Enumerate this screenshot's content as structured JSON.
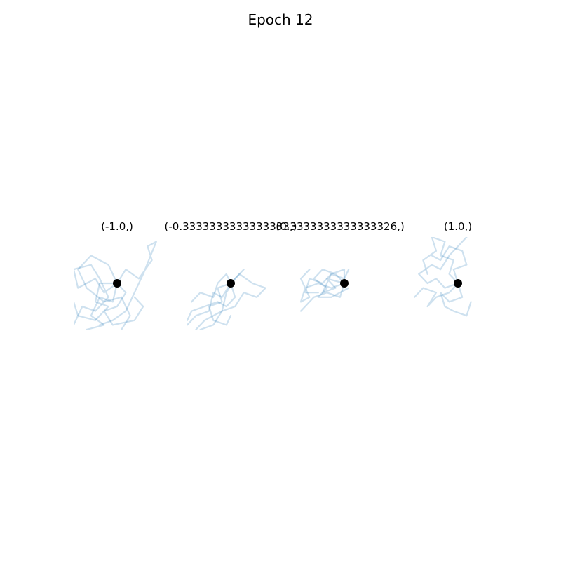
{
  "figure": {
    "title": "Epoch 12"
  },
  "chart_data": {
    "type": "line",
    "title": "Epoch 12",
    "path_color": "#1f77b4",
    "path_opacity": 0.22,
    "marker_color": "#000000",
    "grid": false,
    "axes_visible": false,
    "xlim": [
      -1,
      1
    ],
    "ylim": [
      -1,
      1
    ],
    "panels": [
      {
        "title": "(-1.0,)",
        "start": [
          0,
          0
        ],
        "paths": [
          [
            [
              0,
              0
            ],
            [
              -0.3,
              -0.2
            ],
            [
              -0.5,
              0.1
            ],
            [
              -0.9,
              -0.1
            ],
            [
              -1.0,
              0.3
            ],
            [
              -0.6,
              0.4
            ],
            [
              -0.4,
              0.1
            ],
            [
              -0.2,
              -0.3
            ],
            [
              -0.5,
              -0.6
            ],
            [
              -0.8,
              -0.5
            ],
            [
              -1.0,
              -0.9
            ]
          ],
          [
            [
              0,
              0
            ],
            [
              0.2,
              0.3
            ],
            [
              0.5,
              0.1
            ],
            [
              0.8,
              0.5
            ],
            [
              0.7,
              0.8
            ],
            [
              0.9,
              0.9
            ],
            [
              0.6,
              0.2
            ],
            [
              0.4,
              -0.2
            ],
            [
              0.2,
              -0.6
            ],
            [
              -0.1,
              -0.8
            ],
            [
              -0.4,
              -0.9
            ]
          ],
          [
            [
              0,
              0
            ],
            [
              -0.2,
              0.4
            ],
            [
              -0.6,
              0.6
            ],
            [
              -0.9,
              0.3
            ],
            [
              -0.7,
              -0.1
            ],
            [
              -0.3,
              -0.4
            ],
            [
              0.1,
              -0.3
            ],
            [
              0.3,
              -0.7
            ],
            [
              0.1,
              -1.0
            ]
          ],
          [
            [
              0,
              0
            ],
            [
              -0.1,
              -0.4
            ],
            [
              -0.4,
              -0.3
            ],
            [
              -0.6,
              -0.7
            ],
            [
              -0.3,
              -0.9
            ],
            [
              -0.7,
              -1.0
            ]
          ],
          [
            [
              0,
              0
            ],
            [
              0.2,
              -0.2
            ],
            [
              0.0,
              -0.5
            ],
            [
              -0.3,
              -0.6
            ],
            [
              -0.1,
              -0.9
            ],
            [
              0.4,
              -0.8
            ],
            [
              0.6,
              -0.5
            ],
            [
              0.4,
              -0.3
            ]
          ],
          [
            [
              0,
              0
            ],
            [
              -0.4,
              0.0
            ],
            [
              -0.5,
              -0.4
            ],
            [
              -0.2,
              -0.5
            ],
            [
              -0.5,
              -0.8
            ],
            [
              -0.9,
              -0.7
            ],
            [
              -1.0,
              -0.4
            ]
          ]
        ]
      },
      {
        "title": "(-0.3333333333333333,)",
        "start": [
          0,
          0
        ],
        "paths": [
          [
            [
              0,
              0
            ],
            [
              -0.2,
              -0.3
            ],
            [
              -0.4,
              -0.2
            ],
            [
              -0.5,
              -0.6
            ],
            [
              -0.8,
              -0.7
            ],
            [
              -1.0,
              -0.9
            ]
          ],
          [
            [
              0,
              0
            ],
            [
              0.2,
              0.2
            ],
            [
              0.5,
              0.0
            ],
            [
              0.8,
              -0.1
            ],
            [
              0.6,
              -0.3
            ],
            [
              0.3,
              -0.2
            ],
            [
              0.1,
              -0.5
            ],
            [
              -0.2,
              -0.6
            ],
            [
              -0.4,
              -0.9
            ],
            [
              -0.7,
              -1.0
            ]
          ],
          [
            [
              0,
              0
            ],
            [
              0.1,
              -0.3
            ],
            [
              -0.1,
              -0.5
            ],
            [
              -0.3,
              -0.4
            ],
            [
              -0.6,
              -0.5
            ],
            [
              -0.9,
              -0.6
            ],
            [
              -1.0,
              -0.8
            ]
          ],
          [
            [
              0,
              0
            ],
            [
              -0.3,
              -0.1
            ],
            [
              -0.2,
              -0.4
            ],
            [
              -0.5,
              -0.5
            ],
            [
              -0.4,
              -0.8
            ],
            [
              -0.1,
              -0.9
            ],
            [
              0.0,
              -0.7
            ]
          ],
          [
            [
              0,
              0
            ],
            [
              0.3,
              0.3
            ],
            [
              0.1,
              0.1
            ],
            [
              -0.1,
              -0.2
            ],
            [
              -0.2,
              -0.6
            ],
            [
              -0.6,
              -0.8
            ],
            [
              -0.8,
              -1.0
            ]
          ],
          [
            [
              0,
              0
            ],
            [
              -0.1,
              0.2
            ],
            [
              -0.3,
              0.0
            ],
            [
              -0.4,
              -0.3
            ],
            [
              -0.7,
              -0.2
            ],
            [
              -0.9,
              -0.4
            ]
          ]
        ]
      },
      {
        "title": "(0.3333333333333326,)",
        "start": [
          0,
          0
        ],
        "paths": [
          [
            [
              0,
              0
            ],
            [
              -0.3,
              -0.1
            ],
            [
              -0.6,
              0.0
            ],
            [
              -0.9,
              -0.1
            ],
            [
              -1.0,
              -0.4
            ],
            [
              -0.8,
              -0.3
            ],
            [
              -1.0,
              0.1
            ],
            [
              -0.8,
              0.3
            ]
          ],
          [
            [
              0,
              0
            ],
            [
              -0.2,
              0.2
            ],
            [
              -0.5,
              0.3
            ],
            [
              -0.7,
              0.1
            ],
            [
              -0.4,
              -0.1
            ],
            [
              -0.6,
              -0.3
            ],
            [
              -0.3,
              -0.3
            ],
            [
              -0.1,
              -0.2
            ],
            [
              0.1,
              -0.1
            ]
          ],
          [
            [
              0,
              0
            ],
            [
              0.0,
              0.3
            ],
            [
              -0.3,
              0.2
            ],
            [
              -0.5,
              0.0
            ],
            [
              -0.8,
              0.1
            ],
            [
              -0.9,
              -0.2
            ],
            [
              -0.6,
              -0.2
            ]
          ],
          [
            [
              0,
              0
            ],
            [
              -0.1,
              -0.3
            ],
            [
              -0.4,
              -0.2
            ],
            [
              -0.7,
              -0.3
            ],
            [
              -0.9,
              -0.5
            ],
            [
              -1.0,
              -0.6
            ]
          ],
          [
            [
              0,
              0
            ],
            [
              -0.4,
              0.1
            ],
            [
              -0.2,
              -0.1
            ],
            [
              -0.5,
              -0.2
            ],
            [
              -0.3,
              0.2
            ],
            [
              0.0,
              0.1
            ],
            [
              0.1,
              0.3
            ]
          ]
        ]
      },
      {
        "title": "(1.0,)",
        "start": [
          0,
          0
        ],
        "paths": [
          [
            [
              0,
              0
            ],
            [
              -0.2,
              0.2
            ],
            [
              -0.1,
              0.5
            ],
            [
              -0.4,
              0.6
            ],
            [
              -0.3,
              0.9
            ],
            [
              -0.6,
              1.0
            ],
            [
              -0.5,
              0.7
            ],
            [
              -0.8,
              0.5
            ],
            [
              -0.7,
              0.2
            ]
          ],
          [
            [
              0,
              0
            ],
            [
              -0.3,
              -0.1
            ],
            [
              -0.5,
              0.1
            ],
            [
              -0.7,
              0.0
            ],
            [
              -0.9,
              0.2
            ],
            [
              -0.6,
              0.4
            ],
            [
              -0.4,
              0.3
            ],
            [
              -0.2,
              0.6
            ],
            [
              0.0,
              0.8
            ],
            [
              0.2,
              1.0
            ]
          ],
          [
            [
              0,
              0
            ],
            [
              0.1,
              -0.3
            ],
            [
              -0.2,
              -0.4
            ],
            [
              -0.4,
              -0.2
            ],
            [
              -0.3,
              -0.5
            ],
            [
              -0.1,
              -0.6
            ],
            [
              0.2,
              -0.7
            ],
            [
              0.3,
              -0.4
            ]
          ],
          [
            [
              0,
              0
            ],
            [
              -0.1,
              0.3
            ],
            [
              0.2,
              0.4
            ],
            [
              0.1,
              0.7
            ],
            [
              -0.2,
              0.8
            ],
            [
              -0.4,
              0.5
            ],
            [
              -0.6,
              0.6
            ]
          ],
          [
            [
              0,
              0
            ],
            [
              -0.2,
              -0.2
            ],
            [
              -0.5,
              -0.3
            ],
            [
              -0.7,
              -0.5
            ],
            [
              -0.5,
              -0.2
            ],
            [
              -0.8,
              -0.1
            ],
            [
              -1.0,
              -0.3
            ]
          ]
        ]
      }
    ]
  }
}
